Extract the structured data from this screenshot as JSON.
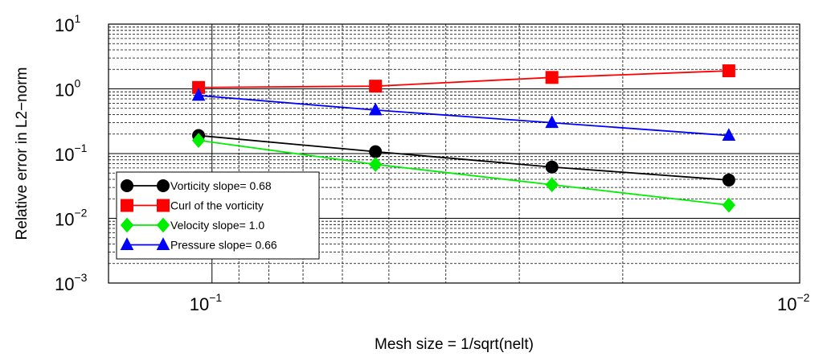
{
  "chart_data": {
    "type": "line",
    "xlabel": "Mesh size = 1/sqrt(nelt)",
    "ylabel": "Relative error in L2−norm",
    "xscale": "log",
    "yscale": "log",
    "x_reversed": true,
    "xlim": [
      0.15,
      0.01
    ],
    "ylim": [
      0.001,
      10
    ],
    "x_ticks": [
      {
        "base": "10",
        "exp": "−1",
        "value": 0.1
      },
      {
        "base": "10",
        "exp": "−2",
        "value": 0.01
      }
    ],
    "y_ticks": [
      {
        "base": "10",
        "exp": "1",
        "value": 10
      },
      {
        "base": "10",
        "exp": "0",
        "value": 1
      },
      {
        "base": "10",
        "exp": "−1",
        "value": 0.1
      },
      {
        "base": "10",
        "exp": "−2",
        "value": 0.01
      },
      {
        "base": "10",
        "exp": "−3",
        "value": 0.001
      }
    ],
    "grid": true,
    "legend_position": "bottom-left",
    "x": [
      0.1054,
      0.0527,
      0.0264,
      0.0132
    ],
    "series": [
      {
        "name": "Vorticity slope= 0.68",
        "color": "#000000",
        "marker": "circle",
        "values": [
          0.19,
          0.107,
          0.062,
          0.039
        ]
      },
      {
        "name": "Curl of the vorticity",
        "color": "#ff0000",
        "marker": "square",
        "values": [
          1.05,
          1.1,
          1.5,
          1.9
        ]
      },
      {
        "name": "Velocity slope= 1.0",
        "color": "#00ee00",
        "marker": "diamond",
        "values": [
          0.16,
          0.068,
          0.033,
          0.016
        ]
      },
      {
        "name": "Pressure slope= 0.66",
        "color": "#0000ff",
        "marker": "triangle",
        "values": [
          0.79,
          0.47,
          0.3,
          0.19
        ]
      }
    ]
  }
}
